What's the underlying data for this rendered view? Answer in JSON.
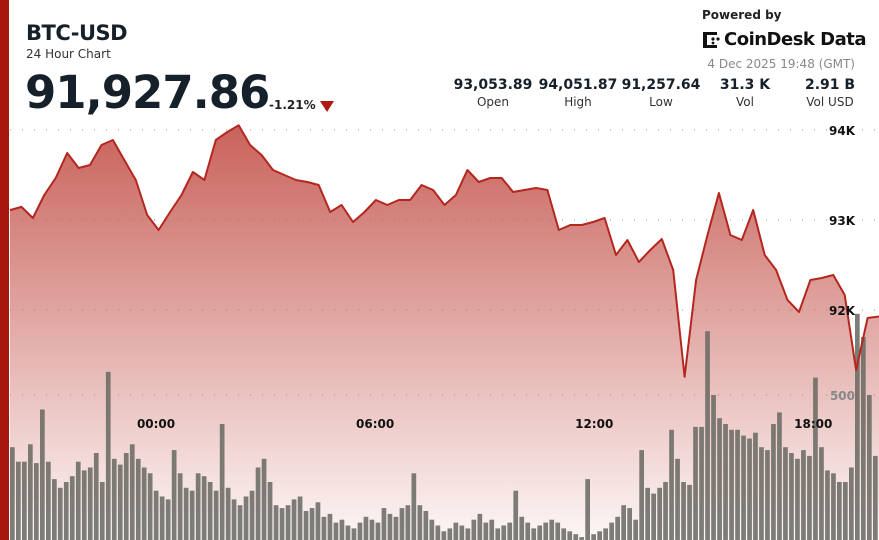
{
  "header": {
    "symbol": "BTC-USD",
    "subtitle": "24 Hour Chart",
    "price": "91,927.86",
    "change": "-1.21%",
    "change_direction": "down",
    "powered_by": "Powered by",
    "brand": "CoinDesk Data",
    "timestamp": "4 Dec 2025 19:48 (GMT)"
  },
  "stats": [
    {
      "value": "93,053.89",
      "label": "Open"
    },
    {
      "value": "94,051.87",
      "label": "High"
    },
    {
      "value": "91,257.64",
      "label": "Low"
    },
    {
      "value": "31.3 K",
      "label": "Vol"
    },
    {
      "value": "2.91 B",
      "label": "Vol USD"
    }
  ],
  "colors": {
    "accent": "#a8170e",
    "line": "#b3271f",
    "fill_top": "#c65a52",
    "volume_bar": "#6b6b64"
  },
  "chart_data": {
    "type": "line",
    "x_range": [
      "20:00",
      "19:48"
    ],
    "x_ticks": [
      "00:00",
      "06:00",
      "12:00",
      "18:00"
    ],
    "price_ticks": [
      {
        "value": 94000,
        "label": "94K"
      },
      {
        "value": 93000,
        "label": "93K"
      },
      {
        "value": 92000,
        "label": "92K"
      }
    ],
    "volume_ticks": [
      {
        "value": 500,
        "label": "500"
      }
    ],
    "grid": true,
    "series": [
      {
        "values": [
          93110,
          93145,
          93022,
          93278,
          93467,
          93744,
          93578,
          93611,
          93833,
          93889,
          93667,
          93444,
          93056,
          92889,
          93089,
          93278,
          93533,
          93444,
          93889,
          93978,
          94052,
          93833,
          93722,
          93556,
          93500,
          93444,
          93422,
          93389,
          93089,
          93167,
          92978,
          93089,
          93222,
          93167,
          93222,
          93222,
          93389,
          93333,
          93167,
          93278,
          93556,
          93422,
          93467,
          93467,
          93311,
          93333,
          93356,
          93333,
          92889,
          92944,
          92944,
          92978,
          93022,
          92611,
          92778,
          92533,
          92667,
          92789,
          92444,
          91258,
          92333,
          92833,
          93300,
          92833,
          92778,
          93111,
          92611,
          92444,
          92111,
          91978,
          92333,
          92356,
          92389,
          92167,
          91333,
          91911,
          91928
        ]
      },
      {
        "type": "bar",
        "values": [
          320,
          270,
          270,
          330,
          265,
          450,
          270,
          210,
          180,
          200,
          220,
          270,
          240,
          250,
          300,
          200,
          580,
          280,
          260,
          300,
          330,
          280,
          250,
          230,
          170,
          150,
          140,
          310,
          230,
          180,
          170,
          230,
          220,
          200,
          170,
          400,
          180,
          140,
          120,
          150,
          170,
          250,
          280,
          200,
          120,
          110,
          120,
          140,
          150,
          100,
          110,
          130,
          80,
          90,
          60,
          70,
          50,
          40,
          60,
          80,
          70,
          60,
          110,
          90,
          80,
          110,
          120,
          230,
          120,
          100,
          70,
          50,
          30,
          40,
          60,
          50,
          40,
          70,
          90,
          60,
          70,
          40,
          50,
          60,
          170,
          80,
          60,
          40,
          50,
          60,
          70,
          60,
          40,
          30,
          20,
          10,
          210,
          20,
          30,
          40,
          60,
          80,
          120,
          110,
          70,
          310,
          180,
          160,
          180,
          200,
          380,
          280,
          200,
          190,
          390,
          390,
          720,
          500,
          420,
          400,
          380,
          380,
          360,
          350,
          370,
          320,
          310,
          400,
          440,
          320,
          300,
          280,
          310,
          290,
          560,
          320,
          240,
          230,
          200,
          200,
          250,
          780,
          700,
          500,
          290
        ]
      }
    ]
  }
}
